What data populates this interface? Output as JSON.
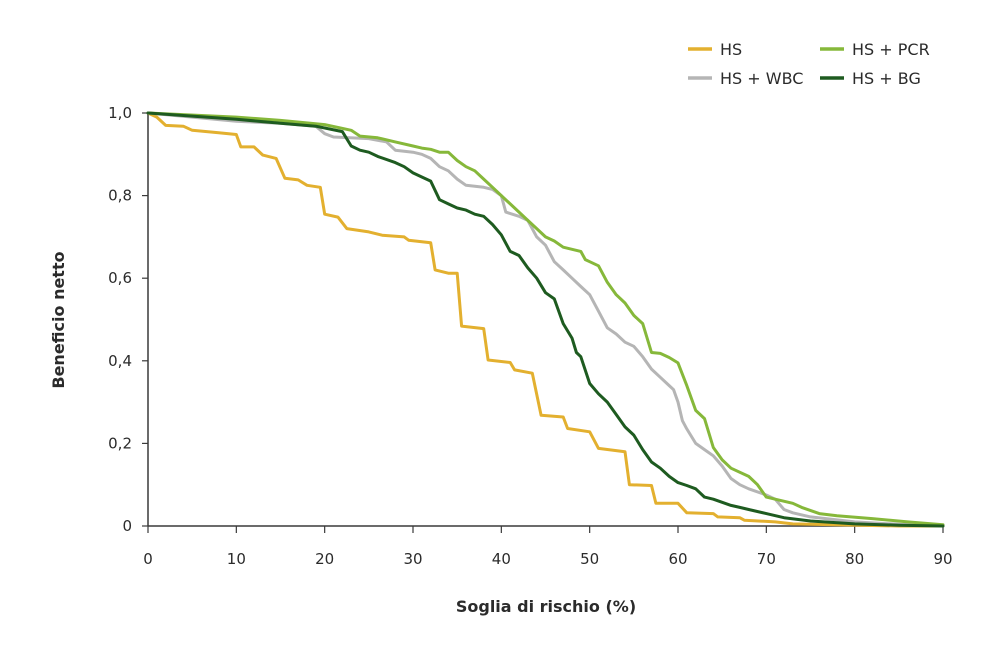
{
  "chart_data": {
    "type": "line",
    "xlabel": "Soglia di rischio (%)",
    "ylabel": "Beneficio netto",
    "xlim": [
      0,
      90
    ],
    "ylim": [
      0,
      1.0
    ],
    "x_ticks": [
      0,
      10,
      20,
      30,
      40,
      50,
      60,
      70,
      80,
      90
    ],
    "x_tick_labels": [
      "0",
      "10",
      "20",
      "30",
      "40",
      "50",
      "60",
      "70",
      "80",
      "90"
    ],
    "y_ticks": [
      0,
      0.2,
      0.4,
      0.6,
      0.8,
      1.0
    ],
    "y_tick_labels": [
      "0",
      "0,2",
      "0,4",
      "0,6",
      "0,8",
      "1,0"
    ],
    "grid": false,
    "legend_position": "top-right",
    "series": [
      {
        "name": "HS",
        "color": "#e3b02f",
        "points": [
          [
            0,
            1.0
          ],
          [
            1,
            0.99
          ],
          [
            2,
            0.97
          ],
          [
            4,
            0.968
          ],
          [
            5,
            0.958
          ],
          [
            8,
            0.952
          ],
          [
            10,
            0.948
          ],
          [
            10.5,
            0.918
          ],
          [
            12,
            0.918
          ],
          [
            13,
            0.898
          ],
          [
            14.5,
            0.89
          ],
          [
            15.5,
            0.842
          ],
          [
            17,
            0.838
          ],
          [
            18,
            0.825
          ],
          [
            19.5,
            0.82
          ],
          [
            20,
            0.755
          ],
          [
            21.5,
            0.748
          ],
          [
            22.5,
            0.72
          ],
          [
            25,
            0.712
          ],
          [
            26.5,
            0.704
          ],
          [
            29,
            0.7
          ],
          [
            29.5,
            0.692
          ],
          [
            32,
            0.686
          ],
          [
            32.5,
            0.62
          ],
          [
            34,
            0.612
          ],
          [
            35,
            0.612
          ],
          [
            35.5,
            0.484
          ],
          [
            38,
            0.478
          ],
          [
            38.5,
            0.402
          ],
          [
            41,
            0.396
          ],
          [
            41.5,
            0.378
          ],
          [
            43.5,
            0.37
          ],
          [
            44.5,
            0.268
          ],
          [
            47,
            0.264
          ],
          [
            47.5,
            0.236
          ],
          [
            50,
            0.228
          ],
          [
            51,
            0.188
          ],
          [
            54,
            0.18
          ],
          [
            54.5,
            0.1
          ],
          [
            57,
            0.098
          ],
          [
            57.5,
            0.055
          ],
          [
            60,
            0.055
          ],
          [
            61,
            0.032
          ],
          [
            64,
            0.03
          ],
          [
            64.5,
            0.022
          ],
          [
            67,
            0.02
          ],
          [
            67.5,
            0.014
          ],
          [
            71,
            0.01
          ],
          [
            73,
            0.005
          ],
          [
            85,
            0.0
          ],
          [
            90,
            0.0
          ]
        ]
      },
      {
        "name": "HS + PCR",
        "color": "#86b83a",
        "points": [
          [
            0,
            1.0
          ],
          [
            10,
            0.99
          ],
          [
            15,
            0.982
          ],
          [
            20,
            0.972
          ],
          [
            23,
            0.958
          ],
          [
            24,
            0.944
          ],
          [
            26,
            0.94
          ],
          [
            28,
            0.93
          ],
          [
            30,
            0.92
          ],
          [
            31,
            0.915
          ],
          [
            32,
            0.912
          ],
          [
            33,
            0.905
          ],
          [
            34,
            0.905
          ],
          [
            35,
            0.885
          ],
          [
            36,
            0.87
          ],
          [
            37,
            0.86
          ],
          [
            38,
            0.84
          ],
          [
            39,
            0.82
          ],
          [
            40,
            0.8
          ],
          [
            41,
            0.78
          ],
          [
            42,
            0.76
          ],
          [
            43,
            0.74
          ],
          [
            44,
            0.72
          ],
          [
            45,
            0.7
          ],
          [
            46,
            0.69
          ],
          [
            47,
            0.675
          ],
          [
            48,
            0.67
          ],
          [
            49,
            0.665
          ],
          [
            49.5,
            0.645
          ],
          [
            50,
            0.64
          ],
          [
            51,
            0.63
          ],
          [
            52,
            0.59
          ],
          [
            53,
            0.56
          ],
          [
            54,
            0.54
          ],
          [
            55,
            0.51
          ],
          [
            56,
            0.49
          ],
          [
            57,
            0.42
          ],
          [
            58,
            0.418
          ],
          [
            59,
            0.408
          ],
          [
            60,
            0.395
          ],
          [
            61,
            0.34
          ],
          [
            62,
            0.28
          ],
          [
            63,
            0.26
          ],
          [
            64,
            0.19
          ],
          [
            65,
            0.16
          ],
          [
            66,
            0.14
          ],
          [
            68,
            0.12
          ],
          [
            69,
            0.1
          ],
          [
            70,
            0.07
          ],
          [
            71,
            0.065
          ],
          [
            73,
            0.055
          ],
          [
            74,
            0.045
          ],
          [
            76,
            0.03
          ],
          [
            78,
            0.025
          ],
          [
            82,
            0.018
          ],
          [
            86,
            0.01
          ],
          [
            90,
            0.003
          ]
        ]
      },
      {
        "name": "HS + WBC",
        "color": "#b5b5b5",
        "points": [
          [
            0,
            1.0
          ],
          [
            10,
            0.98
          ],
          [
            15,
            0.975
          ],
          [
            19,
            0.968
          ],
          [
            20,
            0.95
          ],
          [
            21,
            0.942
          ],
          [
            25,
            0.938
          ],
          [
            27,
            0.93
          ],
          [
            28,
            0.91
          ],
          [
            30,
            0.905
          ],
          [
            31,
            0.9
          ],
          [
            32,
            0.89
          ],
          [
            33,
            0.87
          ],
          [
            34,
            0.86
          ],
          [
            35,
            0.84
          ],
          [
            36,
            0.825
          ],
          [
            38,
            0.82
          ],
          [
            39,
            0.815
          ],
          [
            40,
            0.8
          ],
          [
            40.5,
            0.76
          ],
          [
            42,
            0.75
          ],
          [
            43,
            0.74
          ],
          [
            44,
            0.7
          ],
          [
            45,
            0.68
          ],
          [
            46,
            0.64
          ],
          [
            47,
            0.62
          ],
          [
            48,
            0.6
          ],
          [
            49,
            0.58
          ],
          [
            50,
            0.56
          ],
          [
            51,
            0.52
          ],
          [
            52,
            0.48
          ],
          [
            53,
            0.465
          ],
          [
            54,
            0.445
          ],
          [
            55,
            0.435
          ],
          [
            56,
            0.41
          ],
          [
            57,
            0.38
          ],
          [
            58,
            0.36
          ],
          [
            59,
            0.34
          ],
          [
            59.5,
            0.33
          ],
          [
            60,
            0.3
          ],
          [
            60.5,
            0.255
          ],
          [
            61,
            0.235
          ],
          [
            62,
            0.2
          ],
          [
            63,
            0.185
          ],
          [
            64,
            0.17
          ],
          [
            65,
            0.145
          ],
          [
            66,
            0.115
          ],
          [
            67,
            0.1
          ],
          [
            68,
            0.09
          ],
          [
            70,
            0.075
          ],
          [
            71,
            0.065
          ],
          [
            72,
            0.04
          ],
          [
            73,
            0.032
          ],
          [
            75,
            0.022
          ],
          [
            80,
            0.01
          ],
          [
            85,
            0.004
          ],
          [
            90,
            0.0
          ]
        ]
      },
      {
        "name": "HS + BG",
        "color": "#1e5b20",
        "points": [
          [
            0,
            1.0
          ],
          [
            10,
            0.985
          ],
          [
            15,
            0.975
          ],
          [
            19,
            0.968
          ],
          [
            22,
            0.955
          ],
          [
            23,
            0.92
          ],
          [
            24,
            0.91
          ],
          [
            25,
            0.905
          ],
          [
            26,
            0.895
          ],
          [
            28,
            0.88
          ],
          [
            29,
            0.87
          ],
          [
            30,
            0.855
          ],
          [
            31,
            0.845
          ],
          [
            32,
            0.835
          ],
          [
            33,
            0.79
          ],
          [
            34,
            0.78
          ],
          [
            35,
            0.77
          ],
          [
            36,
            0.765
          ],
          [
            37,
            0.755
          ],
          [
            38,
            0.75
          ],
          [
            39,
            0.73
          ],
          [
            40,
            0.705
          ],
          [
            41,
            0.665
          ],
          [
            42,
            0.655
          ],
          [
            43,
            0.625
          ],
          [
            44,
            0.6
          ],
          [
            45,
            0.565
          ],
          [
            46,
            0.55
          ],
          [
            47,
            0.49
          ],
          [
            48,
            0.455
          ],
          [
            48.5,
            0.42
          ],
          [
            49,
            0.41
          ],
          [
            50,
            0.345
          ],
          [
            51,
            0.32
          ],
          [
            52,
            0.3
          ],
          [
            53,
            0.27
          ],
          [
            54,
            0.24
          ],
          [
            55,
            0.22
          ],
          [
            56,
            0.185
          ],
          [
            57,
            0.155
          ],
          [
            58,
            0.14
          ],
          [
            59,
            0.12
          ],
          [
            60,
            0.105
          ],
          [
            61,
            0.098
          ],
          [
            62,
            0.09
          ],
          [
            63,
            0.07
          ],
          [
            64,
            0.065
          ],
          [
            66,
            0.05
          ],
          [
            67,
            0.045
          ],
          [
            68,
            0.04
          ],
          [
            70,
            0.03
          ],
          [
            72,
            0.02
          ],
          [
            75,
            0.012
          ],
          [
            80,
            0.005
          ],
          [
            85,
            0.002
          ],
          [
            90,
            0.0
          ]
        ]
      }
    ]
  }
}
